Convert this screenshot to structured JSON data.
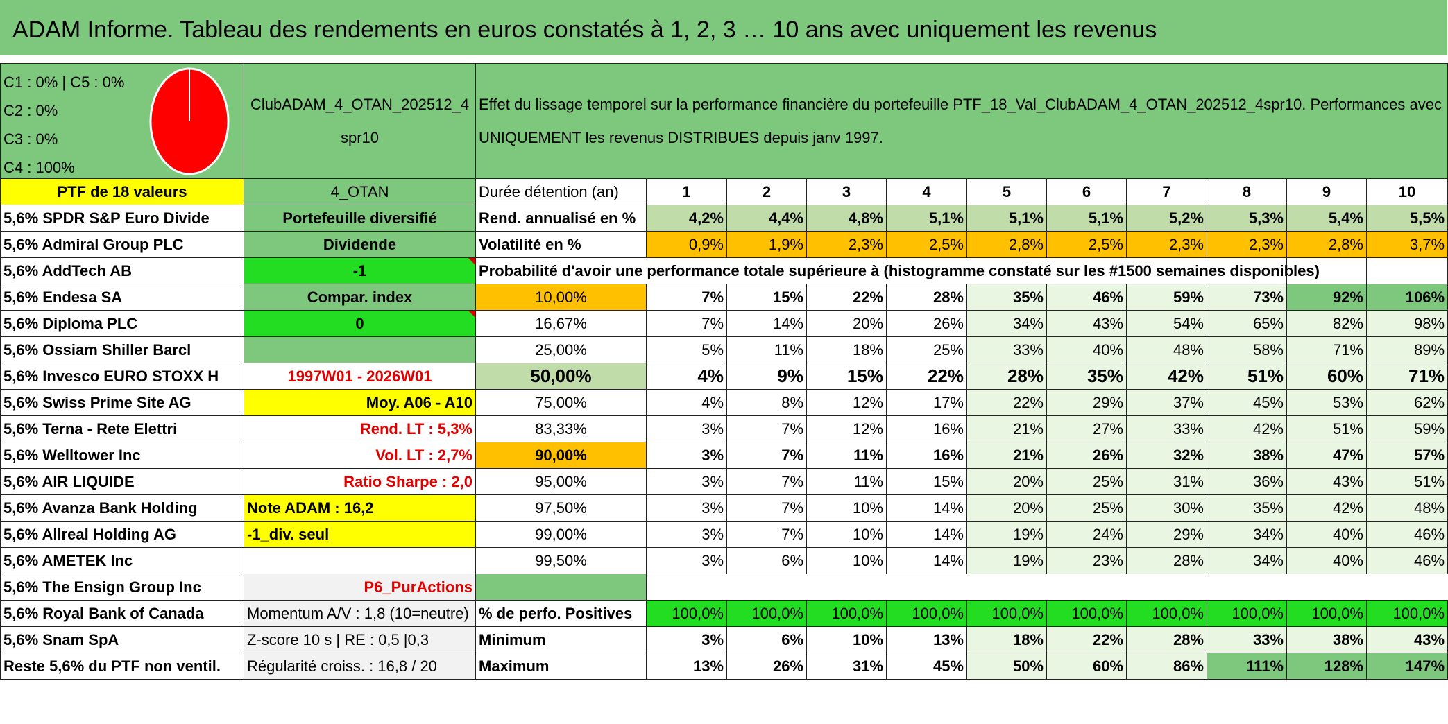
{
  "title": "ADAM Informe. Tableau des rendements en euros constatés à 1, 2, 3 … 10 ans avec uniquement les revenus",
  "pie": {
    "legend": [
      "C1 : 0% | C5 : 0%",
      "C2 : 0%",
      "C3 : 0%",
      "C4 : 100%"
    ],
    "color": "#ff0000"
  },
  "portfolio_name": "ClubADAM_4_OTAN_202512_4spr10",
  "description": "Effet du lissage temporel sur la performance financière du portefeuille PTF_18_Val_ClubADAM_4_OTAN_202512_4spr10. Performances avec UNIQUEMENT les revenus DISTRIBUES depuis janv 1997.",
  "ptf_label": "PTF de 18 valeurs",
  "otan_label": "4_OTAN",
  "duree_label": "Durée détention (an)",
  "years": [
    "1",
    "2",
    "3",
    "4",
    "5",
    "6",
    "7",
    "8",
    "9",
    "10"
  ],
  "holdings": [
    "5,6% SPDR S&P Euro Divide",
    "5,6% Admiral Group PLC",
    "5,6% AddTech AB",
    "5,6% Endesa SA",
    "5,6% Diploma PLC",
    "5,6% Ossiam Shiller Barcl",
    "5,6% Invesco EURO STOXX H",
    "5,6% Swiss Prime Site AG",
    "5,6% Terna - Rete Elettri",
    "5,6% Welltower Inc",
    "5,6% AIR LIQUIDE",
    "5,6% Avanza Bank Holding",
    "5,6% Allreal Holding AG",
    "5,6% AMETEK Inc",
    "5,6% The Ensign Group Inc",
    "5,6% Royal Bank of Canada",
    "5,6% Snam SpA",
    "Reste 5,6% du PTF non ventil."
  ],
  "info": {
    "portefeuille": "Portefeuille diversifié",
    "dividende": "Dividende",
    "minus_one": "-1",
    "compar_index": "Compar. index",
    "zero": "0",
    "period": "1997W01 - 2026W01",
    "moy": "Moy. A06 - A10",
    "rend_lt": "Rend. LT : 5,3%",
    "vol_lt": "Vol. LT : 2,7%",
    "sharpe": "Ratio Sharpe : 2,0",
    "note": "Note ADAM : 16,2",
    "div_seul": "-1_div. seul",
    "p6": "P6_PurActions",
    "momentum": "Momentum A/V : 1,8 (10=neutre)",
    "zscore": "Z-score 10 s | RE : 0,5 |0,3",
    "regularite": "Régularité croiss. : 16,8 / 20"
  },
  "rend": {
    "label": "Rend. annualisé en %",
    "values": [
      "4,2%",
      "4,4%",
      "4,8%",
      "5,1%",
      "5,1%",
      "5,1%",
      "5,2%",
      "5,3%",
      "5,4%",
      "5,5%"
    ]
  },
  "vol": {
    "label": "Volatilité en %",
    "values": [
      "0,9%",
      "1,9%",
      "2,3%",
      "2,5%",
      "2,8%",
      "2,5%",
      "2,3%",
      "2,3%",
      "2,8%",
      "3,7%"
    ]
  },
  "prob_header": "Probabilité d'avoir une performance totale supérieure à (histogramme constaté sur les #1500 semaines disponibles)",
  "prob_rows": [
    {
      "p": "10,00%",
      "v": [
        "7%",
        "15%",
        "22%",
        "28%",
        "35%",
        "46%",
        "59%",
        "73%",
        "92%",
        "106%"
      ]
    },
    {
      "p": "16,67%",
      "v": [
        "7%",
        "14%",
        "20%",
        "26%",
        "34%",
        "43%",
        "54%",
        "65%",
        "82%",
        "98%"
      ]
    },
    {
      "p": "25,00%",
      "v": [
        "5%",
        "11%",
        "18%",
        "25%",
        "33%",
        "40%",
        "48%",
        "58%",
        "71%",
        "89%"
      ]
    },
    {
      "p": "50,00%",
      "v": [
        "4%",
        "9%",
        "15%",
        "22%",
        "28%",
        "35%",
        "42%",
        "51%",
        "60%",
        "71%"
      ]
    },
    {
      "p": "75,00%",
      "v": [
        "4%",
        "8%",
        "12%",
        "17%",
        "22%",
        "29%",
        "37%",
        "45%",
        "53%",
        "62%"
      ]
    },
    {
      "p": "83,33%",
      "v": [
        "3%",
        "7%",
        "12%",
        "16%",
        "21%",
        "27%",
        "33%",
        "42%",
        "51%",
        "59%"
      ]
    },
    {
      "p": "90,00%",
      "v": [
        "3%",
        "7%",
        "11%",
        "16%",
        "21%",
        "26%",
        "32%",
        "38%",
        "47%",
        "57%"
      ]
    },
    {
      "p": "95,00%",
      "v": [
        "3%",
        "7%",
        "11%",
        "15%",
        "20%",
        "25%",
        "31%",
        "36%",
        "43%",
        "51%"
      ]
    },
    {
      "p": "97,50%",
      "v": [
        "3%",
        "7%",
        "10%",
        "14%",
        "20%",
        "25%",
        "30%",
        "35%",
        "42%",
        "48%"
      ]
    },
    {
      "p": "99,00%",
      "v": [
        "3%",
        "7%",
        "10%",
        "14%",
        "19%",
        "24%",
        "29%",
        "34%",
        "40%",
        "46%"
      ]
    },
    {
      "p": "99,50%",
      "v": [
        "3%",
        "6%",
        "10%",
        "14%",
        "19%",
        "23%",
        "28%",
        "34%",
        "40%",
        "46%"
      ]
    }
  ],
  "pos": {
    "label": "% de perfo. Positives",
    "values": [
      "100,0%",
      "100,0%",
      "100,0%",
      "100,0%",
      "100,0%",
      "100,0%",
      "100,0%",
      "100,0%",
      "100,0%",
      "100,0%"
    ]
  },
  "min": {
    "label": "Minimum",
    "values": [
      "3%",
      "6%",
      "10%",
      "13%",
      "18%",
      "22%",
      "28%",
      "33%",
      "38%",
      "43%"
    ]
  },
  "max": {
    "label": "Maximum",
    "values": [
      "13%",
      "26%",
      "31%",
      "45%",
      "50%",
      "60%",
      "86%",
      "111%",
      "128%",
      "147%"
    ]
  }
}
